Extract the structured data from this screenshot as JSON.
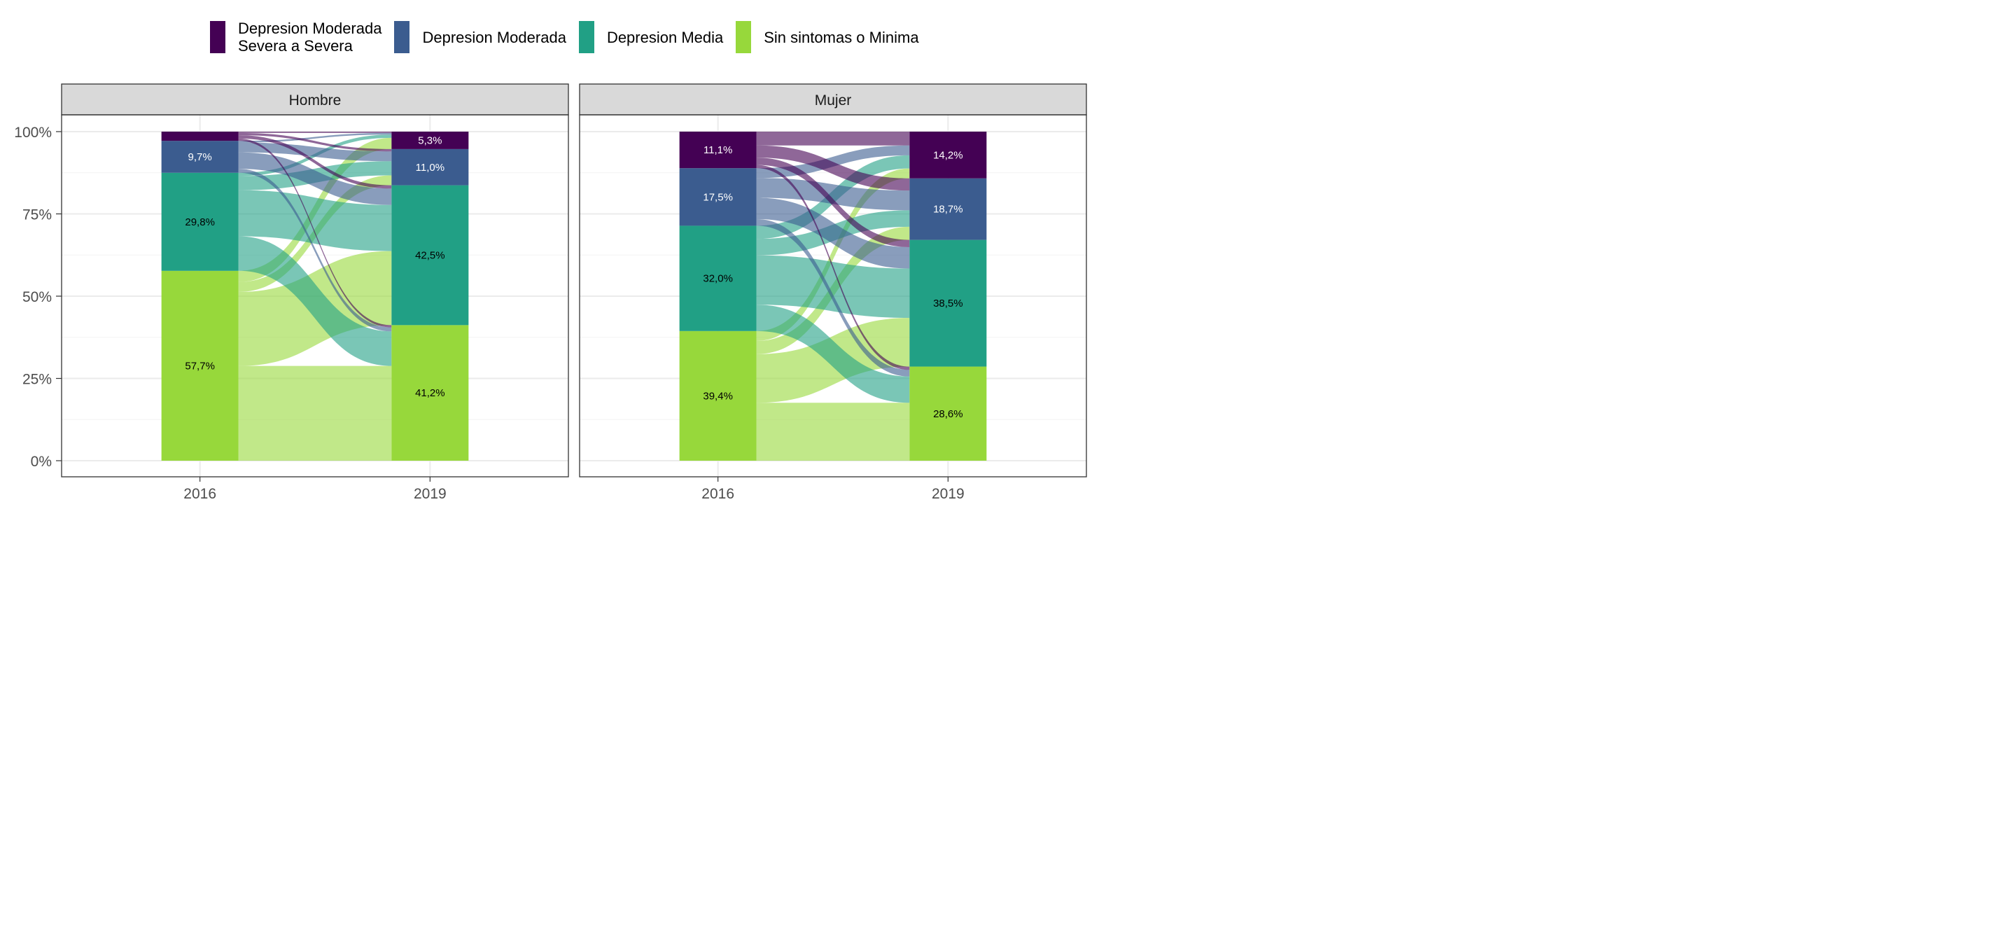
{
  "chart_data": {
    "type": "alluvial",
    "legend": {
      "position": "top",
      "entries": [
        {
          "label": "Depresion Moderada\nSevera a Severa",
          "color": "#440154"
        },
        {
          "label": "Depresion Moderada",
          "color": "#3b5c8f"
        },
        {
          "label": "Depresion Media",
          "color": "#21a085"
        },
        {
          "label": "Sin sintomas o Minima",
          "color": "#97d83b"
        }
      ]
    },
    "x": [
      "2016",
      "2019"
    ],
    "y_ticks": [
      "0%",
      "25%",
      "50%",
      "75%",
      "100%"
    ],
    "ylim": [
      0,
      100
    ],
    "grid": true,
    "categories_bottom_to_top": [
      "Sin sintomas o Minima",
      "Depresion Media",
      "Depresion Moderada",
      "Depresion Moderada Severa a Severa"
    ],
    "panels": [
      {
        "title": "Hombre",
        "stacks": {
          "2016": [
            {
              "category": "Sin sintomas o Minima",
              "value": 57.7,
              "label": "57,7%"
            },
            {
              "category": "Depresion Media",
              "value": 29.8,
              "label": "29,8%"
            },
            {
              "category": "Depresion Moderada",
              "value": 9.7,
              "label": "9,7%"
            },
            {
              "category": "Depresion Moderada Severa a Severa",
              "value": 2.8,
              "label": ""
            }
          ],
          "2019": [
            {
              "category": "Sin sintomas o Minima",
              "value": 41.2,
              "label": "41,2%"
            },
            {
              "category": "Depresion Media",
              "value": 42.5,
              "label": "42,5%"
            },
            {
              "category": "Depresion Moderada",
              "value": 11.0,
              "label": "11,0%"
            },
            {
              "category": "Depresion Moderada Severa a Severa",
              "value": 5.3,
              "label": "5,3%"
            }
          ]
        },
        "flows": [
          {
            "from": "Sin sintomas o Minima",
            "to": "Sin sintomas o Minima",
            "value": 28.8
          },
          {
            "from": "Sin sintomas o Minima",
            "to": "Depresion Media",
            "value": 22.5
          },
          {
            "from": "Sin sintomas o Minima",
            "to": "Depresion Moderada",
            "value": 3.0
          },
          {
            "from": "Sin sintomas o Minima",
            "to": "Depresion Moderada Severa a Severa",
            "value": 3.4
          },
          {
            "from": "Depresion Media",
            "to": "Sin sintomas o Minima",
            "value": 10.5
          },
          {
            "from": "Depresion Media",
            "to": "Depresion Media",
            "value": 14.0
          },
          {
            "from": "Depresion Media",
            "to": "Depresion Moderada",
            "value": 4.3
          },
          {
            "from": "Depresion Media",
            "to": "Depresion Moderada Severa a Severa",
            "value": 1.0
          },
          {
            "from": "Depresion Moderada",
            "to": "Sin sintomas o Minima",
            "value": 1.2
          },
          {
            "from": "Depresion Moderada",
            "to": "Depresion Media",
            "value": 5.0
          },
          {
            "from": "Depresion Moderada",
            "to": "Depresion Moderada",
            "value": 3.0
          },
          {
            "from": "Depresion Moderada",
            "to": "Depresion Moderada Severa a Severa",
            "value": 0.5
          },
          {
            "from": "Depresion Moderada Severa a Severa",
            "to": "Sin sintomas o Minima",
            "value": 0.7
          },
          {
            "from": "Depresion Moderada Severa a Severa",
            "to": "Depresion Media",
            "value": 1.0
          },
          {
            "from": "Depresion Moderada Severa a Severa",
            "to": "Depresion Moderada",
            "value": 0.7
          },
          {
            "from": "Depresion Moderada Severa a Severa",
            "to": "Depresion Moderada Severa a Severa",
            "value": 0.4
          }
        ]
      },
      {
        "title": "Mujer",
        "stacks": {
          "2016": [
            {
              "category": "Sin sintomas o Minima",
              "value": 39.4,
              "label": "39,4%"
            },
            {
              "category": "Depresion Media",
              "value": 32.0,
              "label": "32,0%"
            },
            {
              "category": "Depresion Moderada",
              "value": 17.5,
              "label": "17,5%"
            },
            {
              "category": "Depresion Moderada Severa a Severa",
              "value": 11.1,
              "label": "11,1%"
            }
          ],
          "2019": [
            {
              "category": "Sin sintomas o Minima",
              "value": 28.6,
              "label": "28,6%"
            },
            {
              "category": "Depresion Media",
              "value": 38.5,
              "label": "38,5%"
            },
            {
              "category": "Depresion Moderada",
              "value": 18.7,
              "label": "18,7%"
            },
            {
              "category": "Depresion Moderada Severa a Severa",
              "value": 14.2,
              "label": "14,2%"
            }
          ]
        },
        "flows": [
          {
            "from": "Sin sintomas o Minima",
            "to": "Sin sintomas o Minima",
            "value": 17.6
          },
          {
            "from": "Sin sintomas o Minima",
            "to": "Depresion Media",
            "value": 14.8
          },
          {
            "from": "Sin sintomas o Minima",
            "to": "Depresion Moderada",
            "value": 4.0
          },
          {
            "from": "Sin sintomas o Minima",
            "to": "Depresion Moderada Severa a Severa",
            "value": 3.0
          },
          {
            "from": "Depresion Media",
            "to": "Sin sintomas o Minima",
            "value": 8.0
          },
          {
            "from": "Depresion Media",
            "to": "Depresion Media",
            "value": 15.0
          },
          {
            "from": "Depresion Media",
            "to": "Depresion Moderada",
            "value": 5.0
          },
          {
            "from": "Depresion Media",
            "to": "Depresion Moderada Severa a Severa",
            "value": 4.0
          },
          {
            "from": "Depresion Moderada",
            "to": "Sin sintomas o Minima",
            "value": 2.0
          },
          {
            "from": "Depresion Moderada",
            "to": "Depresion Media",
            "value": 6.5
          },
          {
            "from": "Depresion Moderada",
            "to": "Depresion Moderada",
            "value": 6.0
          },
          {
            "from": "Depresion Moderada",
            "to": "Depresion Moderada Severa a Severa",
            "value": 3.0
          },
          {
            "from": "Depresion Moderada Severa a Severa",
            "to": "Sin sintomas o Minima",
            "value": 1.0
          },
          {
            "from": "Depresion Moderada Severa a Severa",
            "to": "Depresion Media",
            "value": 2.2
          },
          {
            "from": "Depresion Moderada Severa a Severa",
            "to": "Depresion Moderada",
            "value": 3.7
          },
          {
            "from": "Depresion Moderada Severa a Severa",
            "to": "Depresion Moderada Severa a Severa",
            "value": 4.2
          }
        ]
      }
    ]
  }
}
